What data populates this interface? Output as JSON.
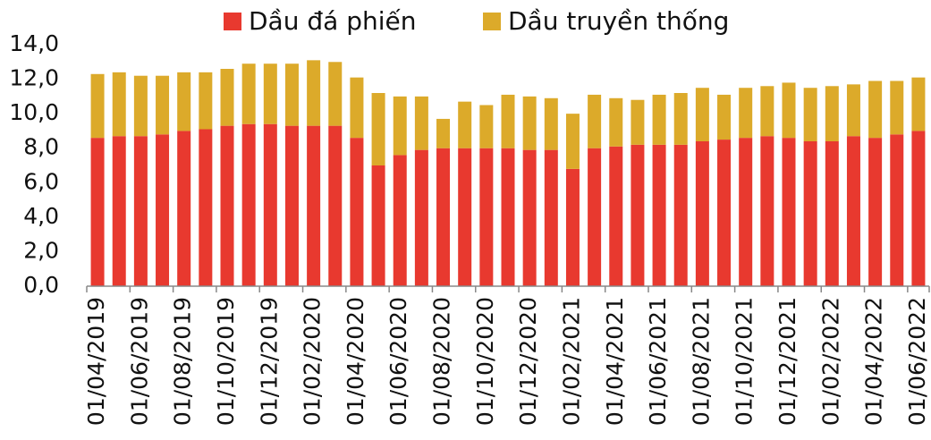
{
  "chart_data": {
    "type": "stacked_bar",
    "categories": [
      "01/04/2019",
      null,
      "01/06/2019",
      null,
      "01/08/2019",
      null,
      "01/10/2019",
      null,
      "01/12/2019",
      null,
      "01/02/2020",
      null,
      "01/04/2020",
      null,
      "01/06/2020",
      null,
      "01/08/2020",
      null,
      "01/10/2020",
      null,
      "01/12/2020",
      null,
      "01/02/2021",
      null,
      "01/04/2021",
      null,
      "01/06/2021",
      null,
      "01/08/2021",
      null,
      "01/10/2021",
      null,
      "01/12/2021",
      null,
      "01/02/2022",
      null,
      "01/04/2022",
      null,
      "01/06/2022"
    ],
    "series": [
      {
        "name": "Dầu đá phiến",
        "color": "#e8392f",
        "values": [
          8.6,
          8.7,
          8.7,
          8.8,
          9.0,
          9.1,
          9.3,
          9.4,
          9.4,
          9.3,
          9.3,
          9.3,
          8.6,
          7.0,
          7.6,
          7.9,
          8.0,
          8.0,
          8.0,
          8.0,
          7.9,
          7.9,
          6.8,
          8.0,
          8.1,
          8.2,
          8.2,
          8.2,
          8.4,
          8.5,
          8.6,
          8.7,
          8.6,
          8.4,
          8.4,
          8.7,
          8.6,
          8.8,
          9.0
        ]
      },
      {
        "name": "Dầu truyền thống",
        "color": "#dcaa2a",
        "values": [
          3.7,
          3.7,
          3.5,
          3.4,
          3.4,
          3.3,
          3.3,
          3.5,
          3.5,
          3.6,
          3.8,
          3.7,
          3.5,
          4.2,
          3.4,
          3.1,
          1.7,
          2.7,
          2.5,
          3.1,
          3.1,
          3.0,
          3.2,
          3.1,
          2.8,
          2.6,
          2.9,
          3.0,
          3.1,
          2.6,
          2.9,
          2.9,
          3.2,
          3.1,
          3.2,
          3.0,
          3.3,
          3.1,
          3.1
        ]
      }
    ],
    "ylim": [
      0,
      14
    ],
    "yticks": [
      {
        "value": 0,
        "label": "0,0"
      },
      {
        "value": 2,
        "label": "2,0"
      },
      {
        "value": 4,
        "label": "4,0"
      },
      {
        "value": 6,
        "label": "6,0"
      },
      {
        "value": 8,
        "label": "8,0"
      },
      {
        "value": 10,
        "label": "10,0"
      },
      {
        "value": 12,
        "label": "12,0"
      },
      {
        "value": 14,
        "label": "14,0"
      }
    ],
    "legend": "top"
  }
}
